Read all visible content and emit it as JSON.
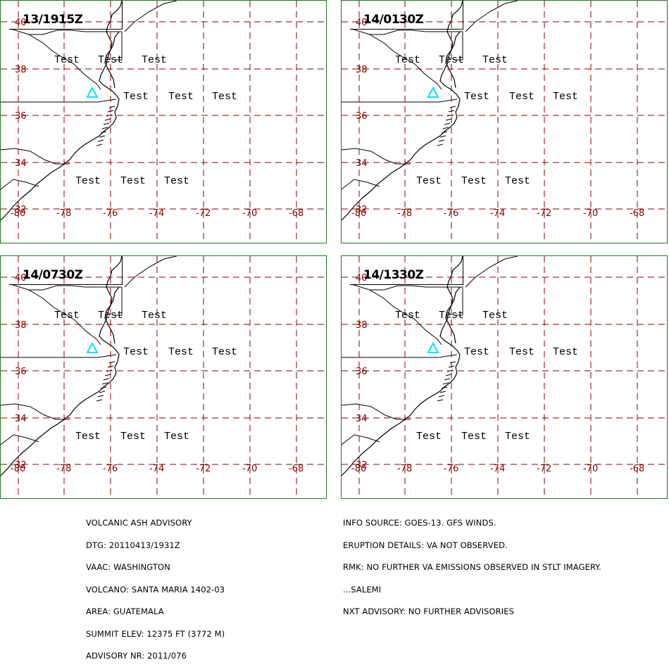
{
  "panels": [
    {
      "timestamp": "13/1915Z"
    },
    {
      "timestamp": "14/0130Z"
    },
    {
      "timestamp": "14/0730Z"
    },
    {
      "timestamp": "14/1330Z"
    }
  ],
  "map": {
    "lat_labels": [
      "40",
      "38",
      "36",
      "34",
      "32"
    ],
    "lon_labels": [
      "-80",
      "-78",
      "-76",
      "-74",
      "-72",
      "-70",
      "-68"
    ],
    "grid_color": "#8b0000",
    "border_color": "#1a7a1a",
    "volcano_symbol_color": "#00e5ff",
    "area_label": "Test"
  },
  "advisory": {
    "lines": [
      "VOLCANIC ASH ADVISORY",
      "DTG: 20110413/1931Z",
      "VAAC: WASHINGTON",
      "VOLCANO: SANTA MARIA 1402-03",
      "AREA: GUATEMALA",
      "SUMMIT ELEV: 12375 FT (3772 M)",
      "ADVISORY NR: 2011/076"
    ]
  },
  "info": {
    "lines": [
      "INFO SOURCE: GOES-13. GFS WINDS.",
      "ERUPTION DETAILS: VA NOT OBSERVED.",
      "RMK: NO FURTHER VA EMISSIONS OBSERVED IN STLT IMAGERY.",
      "...SALEMI",
      "NXT ADVISORY: NO FURTHER ADVISORIES"
    ]
  }
}
